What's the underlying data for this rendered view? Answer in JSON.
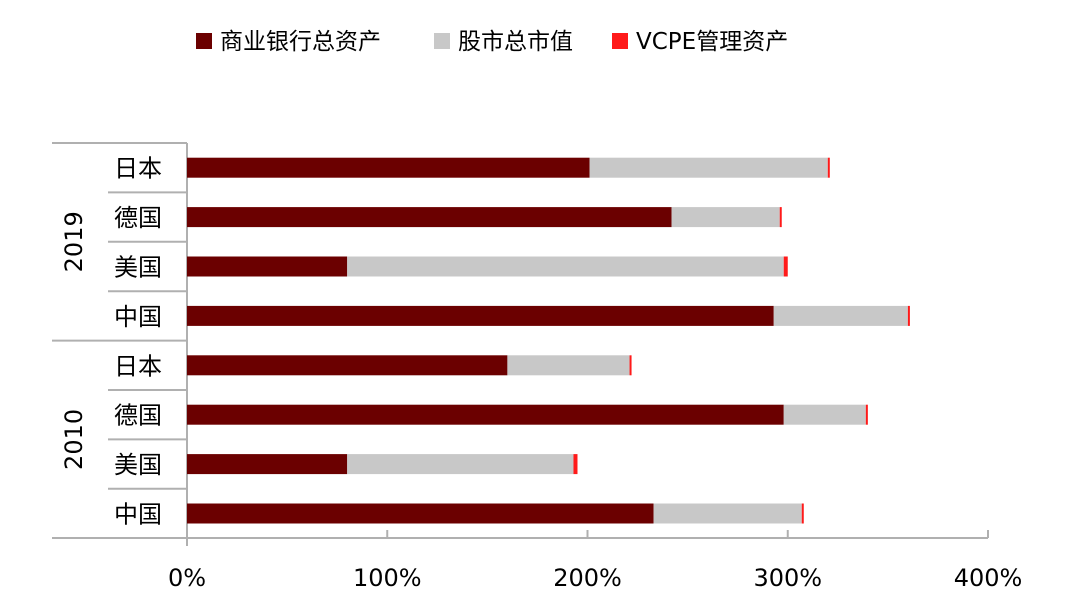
{
  "chart_data": {
    "type": "bar",
    "orientation": "horizontal",
    "stacked": true,
    "groups": [
      {
        "year": "2019",
        "categories": [
          "日本",
          "德国",
          "美国",
          "中国"
        ],
        "series": [
          {
            "name": "商业银行总资产",
            "values": [
              201,
              242,
              80,
              293
            ]
          },
          {
            "name": "股市总市值",
            "values": [
              119,
              54,
              218,
              67
            ]
          },
          {
            "name": "VCPE管理资产",
            "values": [
              1,
              1,
              2,
              1
            ]
          }
        ]
      },
      {
        "year": "2010",
        "categories": [
          "日本",
          "德国",
          "美国",
          "中国"
        ],
        "series": [
          {
            "name": "商业银行总资产",
            "values": [
              160,
              298,
              80,
              233
            ]
          },
          {
            "name": "股市总市值",
            "values": [
              61,
              41,
              113,
              74
            ]
          },
          {
            "name": "VCPE管理资产",
            "values": [
              1,
              1,
              2,
              1
            ]
          }
        ]
      }
    ],
    "xlim": [
      0,
      400
    ],
    "xticks": [
      "0%",
      "100%",
      "200%",
      "300%",
      "400%"
    ],
    "legend_position": "top",
    "grid": false,
    "colors": [
      "#6b0000",
      "#c8c8c8",
      "#ff1a1a"
    ]
  }
}
